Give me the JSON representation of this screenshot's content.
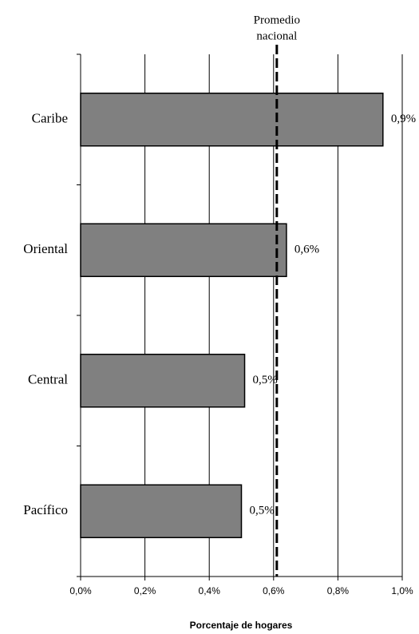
{
  "chart_data": {
    "type": "hbar",
    "categories": [
      "Caribe",
      "Oriental",
      "Central",
      "Pacífico"
    ],
    "values": [
      0.94,
      0.64,
      0.51,
      0.5
    ],
    "value_labels": [
      "0,9%",
      "0,6%",
      "0,5%",
      "0,5%"
    ],
    "color": "#808080",
    "xlabel": "Porcentaje de hogares",
    "xlim": [
      0,
      1.0
    ],
    "xticks": [
      {
        "value": 0,
        "label": "0,0%"
      },
      {
        "value": 0.2,
        "label": "0,2%"
      },
      {
        "value": 0.4,
        "label": "0,4%"
      },
      {
        "value": 0.6,
        "label": "0,6%"
      },
      {
        "value": 0.8,
        "label": "0,8%"
      },
      {
        "value": 1.0,
        "label": "1,0%"
      }
    ],
    "grid": true,
    "reference_line": {
      "value": 0.61,
      "label": [
        "Promedio",
        "nacional"
      ]
    }
  }
}
